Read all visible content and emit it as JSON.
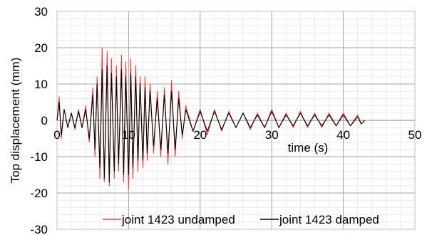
{
  "chart_data": {
    "type": "line",
    "xlabel": "time (s)",
    "ylabel": "Top displacement (mm)",
    "xlim": [
      0,
      50
    ],
    "ylim": [
      -30,
      30
    ],
    "x_ticks": [
      "0",
      "10",
      "20",
      "30",
      "40",
      "50"
    ],
    "y_ticks": [
      "30",
      "20",
      "10",
      "0",
      "-10",
      "-20",
      "-30"
    ],
    "x_tick_values": [
      0,
      10,
      20,
      30,
      40,
      50
    ],
    "y_tick_values": [
      30,
      20,
      10,
      0,
      -10,
      -20,
      -30
    ],
    "grid": true,
    "legend_position": "bottom",
    "series": [
      {
        "name": "joint 1423 undamped",
        "color": "#ff3b3b",
        "x": [
          0,
          0.3,
          0.6,
          1.0,
          1.5,
          2.0,
          2.5,
          3.0,
          3.5,
          4.0,
          4.5,
          5.0,
          5.3,
          5.6,
          6.0,
          6.3,
          6.6,
          7.0,
          7.3,
          7.6,
          8.0,
          8.3,
          8.6,
          9.0,
          9.3,
          9.6,
          10.0,
          10.3,
          10.6,
          11.0,
          11.3,
          11.6,
          12.0,
          12.3,
          12.6,
          13.0,
          13.5,
          14.0,
          14.5,
          15.0,
          15.5,
          16.0,
          16.5,
          17.0,
          17.5,
          18.0,
          19.0,
          20.0,
          21.0,
          22.0,
          23.0,
          24.0,
          25.0,
          26.0,
          27.0,
          28.0,
          29.0,
          30.0,
          31.0,
          32.0,
          33.0,
          34.0,
          35.0,
          36.0,
          37.0,
          38.0,
          39.0,
          40.0,
          41.0,
          42.0,
          42.5,
          43.0
        ],
        "y": [
          0,
          6.5,
          -5,
          3,
          -2,
          2,
          -2.5,
          3,
          -2,
          4,
          -6,
          9,
          -10,
          12,
          -16,
          20,
          -17,
          19,
          -18,
          17,
          -16,
          15,
          -14,
          18,
          -17,
          16,
          -19,
          17,
          -16,
          15,
          -14,
          12,
          -13,
          12,
          -11,
          10,
          -9,
          8,
          -10,
          9,
          -12,
          11,
          -10,
          8,
          -5,
          4,
          -3,
          3,
          -4,
          3,
          -3,
          2.5,
          -2,
          2,
          -2.5,
          2,
          -2,
          3,
          -2,
          2,
          -2,
          2.5,
          -2,
          2,
          -2,
          2,
          -1.5,
          2,
          -1.5,
          1.5,
          -1,
          0
        ]
      },
      {
        "name": "joint 1423 damped",
        "color": "#000000",
        "x": [
          0,
          0.3,
          0.6,
          1.0,
          1.5,
          2.0,
          2.5,
          3.0,
          3.5,
          4.0,
          4.5,
          5.0,
          5.3,
          5.6,
          6.0,
          6.3,
          6.6,
          7.0,
          7.3,
          7.6,
          8.0,
          8.3,
          8.6,
          9.0,
          9.3,
          9.6,
          10.0,
          10.3,
          10.6,
          11.0,
          11.3,
          11.6,
          12.0,
          12.3,
          12.6,
          13.0,
          13.5,
          14.0,
          14.5,
          15.0,
          15.5,
          16.0,
          16.5,
          17.0,
          17.5,
          18.0,
          19.0,
          20.0,
          21.0,
          22.0,
          23.0,
          24.0,
          25.0,
          26.0,
          27.0,
          28.0,
          29.0,
          30.0,
          31.0,
          32.0,
          33.0,
          34.0,
          35.0,
          36.0,
          37.0,
          38.0,
          39.0,
          40.0,
          41.0,
          42.0,
          42.5,
          43.0
        ],
        "y": [
          0,
          5,
          -4,
          3,
          -2,
          2,
          -2,
          2.5,
          -2,
          3,
          -5,
          7,
          -8,
          10,
          -13,
          14,
          -16,
          15,
          -17,
          13,
          -14,
          12,
          -12,
          14,
          -15,
          12,
          -15,
          13,
          -13,
          12,
          -11,
          10,
          -11,
          9,
          -9,
          8,
          -7,
          6,
          -8,
          7,
          -9,
          8,
          -8,
          6,
          -4,
          3,
          -3,
          2.5,
          -3,
          2.5,
          -2.5,
          2,
          -2,
          2,
          -2,
          1.5,
          -2,
          2.5,
          -2,
          1.5,
          -1.5,
          2,
          -1.5,
          1.5,
          -1.5,
          1.5,
          -1.5,
          1.5,
          -1.5,
          1,
          -1,
          0
        ]
      }
    ]
  }
}
